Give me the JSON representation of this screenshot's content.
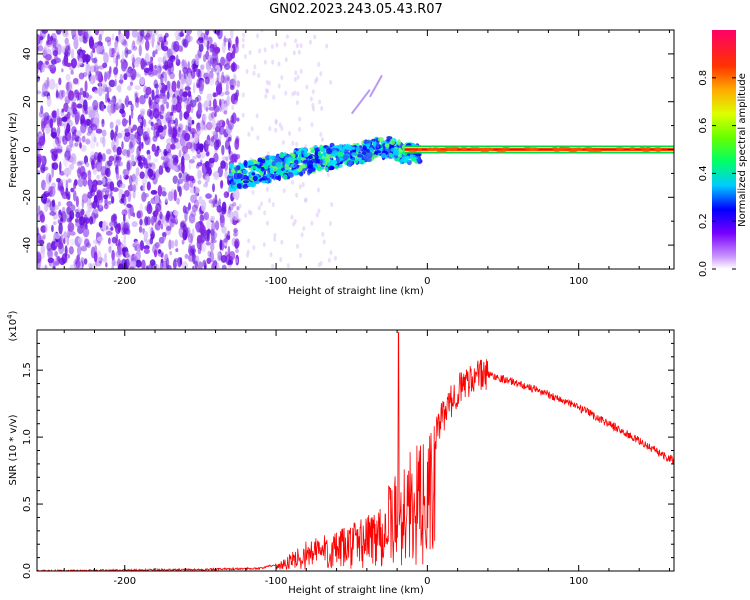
{
  "title": "GN02.2023.243.05.43.R07",
  "chart_data": [
    {
      "type": "heatmap",
      "xlabel": "Height of straight line (km)",
      "ylabel": "Frequency (Hz)",
      "xlim": [
        -258,
        163
      ],
      "ylim": [
        -50,
        50
      ],
      "xticks": [
        -200,
        -100,
        0,
        100
      ],
      "yticks": [
        -40,
        -20,
        0,
        20,
        40
      ],
      "colorbar": {
        "label": "Normalized spectral amplitude",
        "range": [
          0,
          1
        ],
        "ticks": [
          0.0,
          0.2,
          0.4,
          0.6,
          0.8
        ],
        "colors": [
          "#ffffff",
          "#cc99ff",
          "#7700ff",
          "#0000ff",
          "#00ccff",
          "#00ff66",
          "#aaff00",
          "#ffff00",
          "#ff9900",
          "#ff0000",
          "#ff0066"
        ]
      },
      "features": {
        "noise_region_x": [
          -258,
          -125
        ],
        "noise_color": "#7a1ee8",
        "signal_track": {
          "x": [
            -130,
            -110,
            -90,
            -70,
            -50,
            -35,
            -25,
            -15,
            0,
            50,
            100,
            163
          ],
          "y": [
            -12,
            -9,
            -6,
            -4,
            -2,
            0,
            1,
            -2,
            -1,
            0,
            0,
            0
          ]
        },
        "carrier_line_color": "#ff0000"
      }
    },
    {
      "type": "line",
      "xlabel": "Height of straight line (km)",
      "ylabel": "SNR (10 * v/v)",
      "scale_label": "(x10",
      "scale_exp": "4",
      "scale_close": ")",
      "xlim": [
        -258,
        163
      ],
      "ylim": [
        0,
        1.8
      ],
      "xticks": [
        -200,
        -100,
        0,
        100
      ],
      "yticks": [
        0.0,
        0.5,
        1.0,
        1.5
      ],
      "line_color": "#ff0000",
      "envelope": {
        "x": [
          -258,
          -150,
          -110,
          -100,
          -90,
          -80,
          -70,
          -60,
          -50,
          -40,
          -30,
          -20,
          -15,
          -10,
          0,
          10,
          20,
          30,
          40,
          60,
          80,
          100,
          120,
          140,
          163
        ],
        "y": [
          0.0,
          0.01,
          0.02,
          0.05,
          0.12,
          0.2,
          0.25,
          0.25,
          0.32,
          0.38,
          0.5,
          0.65,
          0.75,
          0.8,
          0.85,
          1.15,
          1.35,
          1.45,
          1.47,
          1.4,
          1.32,
          1.22,
          1.1,
          0.97,
          0.82
        ]
      },
      "spike": {
        "x": -19,
        "y": 1.78
      }
    }
  ]
}
